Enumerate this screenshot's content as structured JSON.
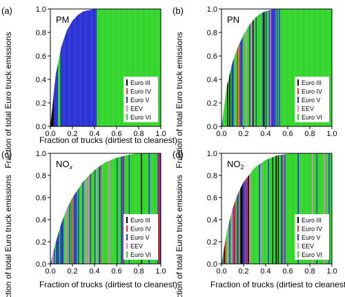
{
  "figure": {
    "ylabel": "Fraction of total Euro truck emissions",
    "xlabel": "Fraction of trucks (dirtiest to cleanest)"
  },
  "chart_data": [
    {
      "panel": "(a)",
      "type": "area",
      "species": "PM",
      "xlabel": "Fraction of trucks (dirtiest to cleanest)",
      "ylabel": "Fraction of total Euro truck emissions",
      "xlim": [
        0,
        1
      ],
      "ylim": [
        0,
        1
      ],
      "xticks": [
        "0.0",
        "0.2",
        "0.4",
        "0.6",
        "0.8",
        "1.0"
      ],
      "yticks": [
        "0.0",
        "0.2",
        "0.4",
        "0.6",
        "0.8",
        "1.0"
      ],
      "legend_position": "bottom-right",
      "curve": {
        "x": [
          0,
          0.05,
          0.1,
          0.15,
          0.2,
          0.25,
          0.3,
          0.35,
          0.4,
          0.45,
          0.5,
          1.0
        ],
        "y": [
          0,
          0.45,
          0.68,
          0.82,
          0.9,
          0.95,
          0.98,
          0.99,
          1.0,
          1.0,
          1.0,
          1.0
        ]
      },
      "segments": [
        {
          "class": "Euro III",
          "from": 0.0,
          "to": 0.03
        },
        {
          "class": "mix",
          "from": 0.03,
          "to": 0.09
        },
        {
          "class": "Euro V",
          "from": 0.09,
          "to": 0.42
        },
        {
          "class": "Euro VI",
          "from": 0.42,
          "to": 1.0
        }
      ]
    },
    {
      "panel": "(b)",
      "type": "area",
      "species": "PN",
      "xlabel": "Fraction of trucks (dirtiest to cleanest)",
      "ylabel": "Fraction of total Euro truck emissions",
      "xlim": [
        0,
        1
      ],
      "ylim": [
        0,
        1
      ],
      "xticks": [
        "0.0",
        "0.2",
        "0.4",
        "0.6",
        "0.8",
        "1.0"
      ],
      "yticks": [
        "0.0",
        "0.2",
        "0.4",
        "0.6",
        "0.8",
        "1.0"
      ],
      "legend_position": "bottom-right",
      "curve": {
        "x": [
          0,
          0.05,
          0.1,
          0.15,
          0.2,
          0.25,
          0.3,
          0.35,
          0.4,
          0.45,
          0.5,
          1.0
        ],
        "y": [
          0,
          0.35,
          0.55,
          0.68,
          0.78,
          0.86,
          0.92,
          0.96,
          0.98,
          0.995,
          1.0,
          1.0
        ]
      },
      "segments": [
        {
          "class": "mix",
          "from": 0.0,
          "to": 0.53
        },
        {
          "class": "Euro VI",
          "from": 0.53,
          "to": 1.0
        }
      ]
    },
    {
      "panel": "(c)",
      "type": "area",
      "species": "NOx",
      "xlabel": "Fraction of trucks (dirtiest to cleanest)",
      "ylabel": "Fraction of total Euro truck emissions",
      "xlim": [
        0,
        1
      ],
      "ylim": [
        0,
        1
      ],
      "xticks": [
        "0.0",
        "0.2",
        "0.4",
        "0.6",
        "0.8",
        "1.0"
      ],
      "yticks": [
        "0.0",
        "0.2",
        "0.4",
        "0.6",
        "0.8",
        "1.0"
      ],
      "legend_position": "bottom-right",
      "curve": {
        "x": [
          0,
          0.05,
          0.1,
          0.15,
          0.2,
          0.3,
          0.4,
          0.5,
          0.6,
          0.7,
          0.8,
          0.9,
          1.0
        ],
        "y": [
          0,
          0.2,
          0.37,
          0.5,
          0.6,
          0.75,
          0.85,
          0.92,
          0.96,
          0.985,
          1.0,
          1.0,
          1.0
        ]
      },
      "segments": [
        {
          "class": "mix",
          "from": 0.0,
          "to": 1.0
        }
      ]
    },
    {
      "panel": "(d)",
      "type": "area",
      "species": "NO2",
      "xlabel": "Fraction of trucks (dirtiest to cleanest)",
      "ylabel": "Fraction of total Euro truck emissions",
      "xlim": [
        0,
        1
      ],
      "ylim": [
        0,
        1
      ],
      "xticks": [
        "0.0",
        "0.2",
        "0.4",
        "0.6",
        "0.8",
        "1.0"
      ],
      "yticks": [
        "0.0",
        "0.2",
        "0.4",
        "0.6",
        "0.8",
        "1.0"
      ],
      "legend_position": "bottom-right",
      "curve": {
        "x": [
          0,
          0.05,
          0.1,
          0.15,
          0.2,
          0.3,
          0.4,
          0.5,
          0.6,
          0.7,
          1.0
        ],
        "y": [
          0,
          0.3,
          0.5,
          0.64,
          0.74,
          0.87,
          0.94,
          0.98,
          0.995,
          1.0,
          1.0
        ]
      },
      "segments": [
        {
          "class": "mix",
          "from": 0.0,
          "to": 1.0
        }
      ]
    }
  ],
  "legend": [
    {
      "label": "Euro III",
      "color": "#000000"
    },
    {
      "label": "Euro IV",
      "color": "#e8322d"
    },
    {
      "label": "Euro V",
      "color": "#2a32d8"
    },
    {
      "label": "EEV",
      "color": "#f07ad4"
    },
    {
      "label": "Euro VI",
      "color": "#33d62a"
    }
  ],
  "species_label_parts": {
    "PM": [
      "PM"
    ],
    "PN": [
      "PN"
    ],
    "NOx": [
      "NO",
      "x"
    ],
    "NO2": [
      "NO",
      "2"
    ]
  }
}
